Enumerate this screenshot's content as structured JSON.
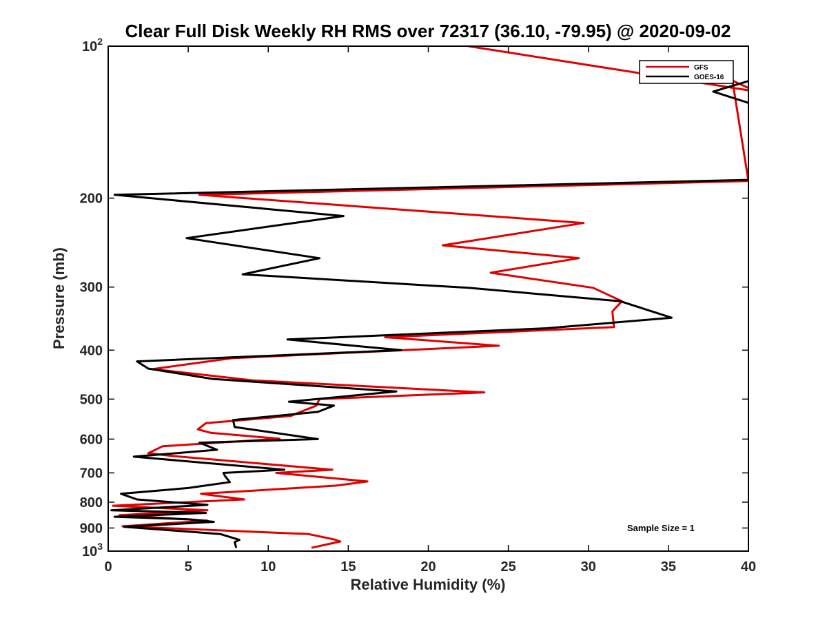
{
  "chart_data": {
    "type": "line",
    "title": "Clear Full Disk Weekly RH RMS over 72317 (36.10, -79.95) @ 2020-09-02",
    "xlabel": "Relative Humidity (%)",
    "ylabel": "Pressure (mb)",
    "xlim": [
      0,
      40
    ],
    "ylim": [
      100,
      1000
    ],
    "y_scale": "log",
    "y_reversed": true,
    "grid": false,
    "legend_position": "top-right",
    "x_ticks": [
      0,
      5,
      10,
      15,
      20,
      25,
      30,
      35,
      40
    ],
    "y_ticks": [
      {
        "value": 100,
        "base": "10",
        "exp": "2"
      },
      {
        "value": 200,
        "label": "200"
      },
      {
        "value": 300,
        "label": "300"
      },
      {
        "value": 400,
        "label": "400"
      },
      {
        "value": 500,
        "label": "500"
      },
      {
        "value": 600,
        "label": "600"
      },
      {
        "value": 700,
        "label": "700"
      },
      {
        "value": 800,
        "label": "800"
      },
      {
        "value": 900,
        "label": "900"
      },
      {
        "value": 1000,
        "base": "10",
        "exp": "3"
      }
    ],
    "annotation": "Sample Size = 1",
    "series": [
      {
        "name": "GFS",
        "color": "#e00000",
        "points": [
          [
            22.5,
            100
          ],
          [
            40.5,
            123
          ],
          [
            39,
            117
          ],
          [
            40,
            185
          ],
          [
            5.7,
            197
          ],
          [
            29.7,
            224
          ],
          [
            20.9,
            248
          ],
          [
            29.4,
            263
          ],
          [
            23.9,
            281
          ],
          [
            30.3,
            301
          ],
          [
            32.1,
            320
          ],
          [
            31.5,
            335
          ],
          [
            31.6,
            360
          ],
          [
            17.3,
            377
          ],
          [
            24.4,
            392
          ],
          [
            7.7,
            415
          ],
          [
            2.8,
            436
          ],
          [
            9.0,
            459
          ],
          [
            23.5,
            485
          ],
          [
            13.2,
            500
          ],
          [
            13.0,
            515
          ],
          [
            11.4,
            540
          ],
          [
            6.1,
            558
          ],
          [
            5.6,
            574
          ],
          [
            6.4,
            583
          ],
          [
            10.7,
            599
          ],
          [
            3.4,
            620
          ],
          [
            2.5,
            640
          ],
          [
            4.0,
            648
          ],
          [
            14.0,
            690
          ],
          [
            10.5,
            700
          ],
          [
            16.2,
            728
          ],
          [
            14.2,
            742
          ],
          [
            5.8,
            770
          ],
          [
            8.5,
            790
          ],
          [
            0.3,
            813
          ],
          [
            6.2,
            830
          ],
          [
            0.7,
            849
          ],
          [
            6.2,
            870
          ],
          [
            0.9,
            893
          ],
          [
            12.5,
            925
          ],
          [
            14.1,
            948
          ],
          [
            14.5,
            957
          ],
          [
            12.7,
            985
          ]
        ]
      },
      {
        "name": "GOES-16",
        "color": "#000000",
        "points": [
          [
            40.5,
            116
          ],
          [
            37.8,
            123
          ],
          [
            40.5,
            131
          ],
          [
            40,
            184
          ],
          [
            0.4,
            197
          ],
          [
            14.7,
            217
          ],
          [
            4.9,
            240
          ],
          [
            13.2,
            263
          ],
          [
            8.4,
            283
          ],
          [
            22.5,
            301
          ],
          [
            32.0,
            320
          ],
          [
            35.2,
            345
          ],
          [
            27.4,
            362
          ],
          [
            11.2,
            381
          ],
          [
            18.3,
            400
          ],
          [
            1.8,
            421
          ],
          [
            2.5,
            435
          ],
          [
            6.5,
            456
          ],
          [
            18.0,
            483
          ],
          [
            11.3,
            506
          ],
          [
            14.1,
            515
          ],
          [
            13.1,
            530
          ],
          [
            7.8,
            550
          ],
          [
            7.9,
            568
          ],
          [
            13.1,
            600
          ],
          [
            5.7,
            610
          ],
          [
            6.8,
            630
          ],
          [
            1.6,
            650
          ],
          [
            11.0,
            690
          ],
          [
            7.2,
            700
          ],
          [
            7.3,
            710
          ],
          [
            7.6,
            730
          ],
          [
            5.0,
            750
          ],
          [
            0.8,
            770
          ],
          [
            1.8,
            790
          ],
          [
            6.2,
            810
          ],
          [
            0.2,
            830
          ],
          [
            6.1,
            840
          ],
          [
            0.4,
            855
          ],
          [
            5.0,
            865
          ],
          [
            6.6,
            875
          ],
          [
            1.0,
            895
          ],
          [
            7.0,
            925
          ],
          [
            8.2,
            950
          ],
          [
            7.9,
            960
          ],
          [
            8.0,
            985
          ]
        ]
      }
    ]
  }
}
